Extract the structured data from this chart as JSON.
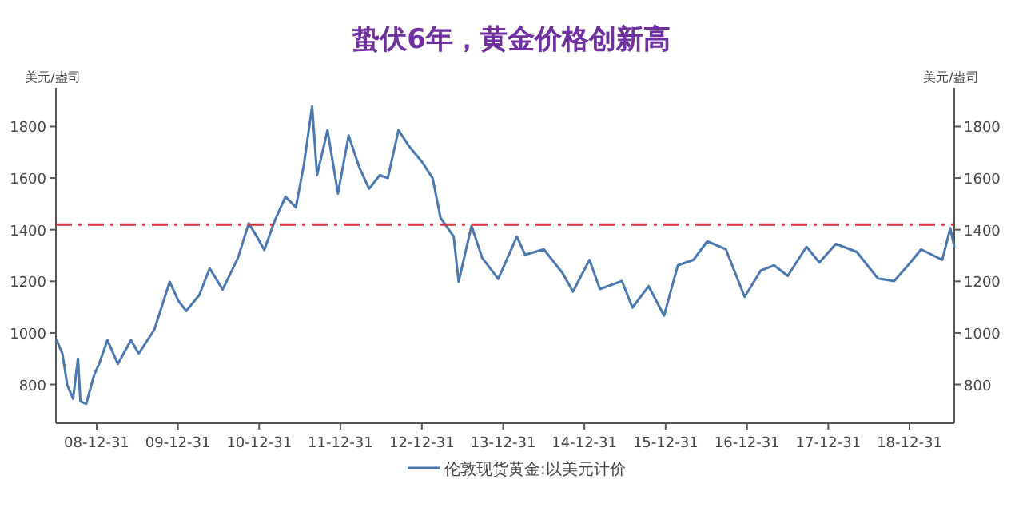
{
  "chart_data": {
    "type": "line",
    "title": "蛰伏6年，黄金价格创新高",
    "ylabel": "美元/盎司",
    "y2label": "美元/盎司",
    "xlim": [
      "2008-07-01",
      "2019-07-20"
    ],
    "xticks": [
      {
        "value": "2008-12-31",
        "label": "08-12-31"
      },
      {
        "value": "2009-12-31",
        "label": "09-12-31"
      },
      {
        "value": "2010-12-31",
        "label": "10-12-31"
      },
      {
        "value": "2011-12-31",
        "label": "11-12-31"
      },
      {
        "value": "2012-12-31",
        "label": "12-12-31"
      },
      {
        "value": "2013-12-31",
        "label": "13-12-31"
      },
      {
        "value": "2014-12-31",
        "label": "14-12-31"
      },
      {
        "value": "2015-12-31",
        "label": "15-12-31"
      },
      {
        "value": "2016-12-31",
        "label": "16-12-31"
      },
      {
        "value": "2017-12-31",
        "label": "17-12-31"
      },
      {
        "value": "2018-12-31",
        "label": "18-12-31"
      }
    ],
    "ylim": [
      650,
      1950
    ],
    "yticks": [
      800,
      1000,
      1200,
      1400,
      1600,
      1800
    ],
    "y2lim": [
      650,
      1950
    ],
    "y2ticks": [
      800,
      1000,
      1200,
      1400,
      1600,
      1800
    ],
    "legend": "bottom",
    "ref_lines": [
      {
        "axis": "y",
        "value": 1420,
        "color": "#e0303a",
        "line_style": "dashed"
      }
    ],
    "series": [
      {
        "name": "伦敦现货黄金:以美元计价",
        "color": "#4a78b0",
        "x": [
          "2008-07-04",
          "2008-07-30",
          "2008-08-21",
          "2008-09-16",
          "2008-10-08",
          "2008-10-19",
          "2008-11-14",
          "2008-12-20",
          "2009-01-11",
          "2009-02-17",
          "2009-04-05",
          "2009-06-03",
          "2009-07-08",
          "2009-09-16",
          "2009-11-24",
          "2010-01-01",
          "2010-02-06",
          "2010-04-06",
          "2010-05-23",
          "2010-07-20",
          "2010-09-27",
          "2010-11-14",
          "2010-12-20",
          "2011-01-23",
          "2011-03-11",
          "2011-04-28",
          "2011-06-14",
          "2011-07-20",
          "2011-08-26",
          "2011-09-17",
          "2011-11-03",
          "2011-12-20",
          "2012-02-06",
          "2012-03-25",
          "2012-05-08",
          "2012-06-25",
          "2012-07-31",
          "2012-09-17",
          "2012-11-03",
          "2013-01-01",
          "2013-02-17",
          "2013-03-25",
          "2013-05-23",
          "2013-06-14",
          "2013-08-11",
          "2013-09-28",
          "2013-12-09",
          "2014-03-03",
          "2014-04-09",
          "2014-07-02",
          "2014-09-24",
          "2014-11-10",
          "2015-01-23",
          "2015-03-11",
          "2015-06-18",
          "2015-08-04",
          "2015-10-16",
          "2015-12-24",
          "2016-02-24",
          "2016-05-04",
          "2016-07-05",
          "2016-09-27",
          "2016-12-20",
          "2017-03-03",
          "2017-05-01",
          "2017-07-02",
          "2017-09-24",
          "2017-11-21",
          "2018-02-03",
          "2018-05-08",
          "2018-08-11",
          "2018-10-23",
          "2019-01-04",
          "2019-02-21",
          "2019-05-27",
          "2019-07-02",
          "2019-07-20"
        ],
        "values": [
          972,
          920,
          797,
          745,
          900,
          735,
          725,
          838,
          880,
          972,
          880,
          972,
          920,
          1013,
          1198,
          1126,
          1085,
          1147,
          1250,
          1168,
          1291,
          1425,
          1374,
          1322,
          1435,
          1528,
          1487,
          1652,
          1878,
          1611,
          1786,
          1540,
          1765,
          1641,
          1559,
          1611,
          1600,
          1786,
          1724,
          1662,
          1600,
          1446,
          1374,
          1198,
          1415,
          1291,
          1209,
          1374,
          1303,
          1324,
          1232,
          1160,
          1283,
          1170,
          1201,
          1098,
          1181,
          1067,
          1262,
          1283,
          1355,
          1324,
          1140,
          1242,
          1262,
          1221,
          1334,
          1273,
          1345,
          1314,
          1211,
          1201,
          1273,
          1324,
          1283,
          1406,
          1334
        ]
      }
    ]
  }
}
